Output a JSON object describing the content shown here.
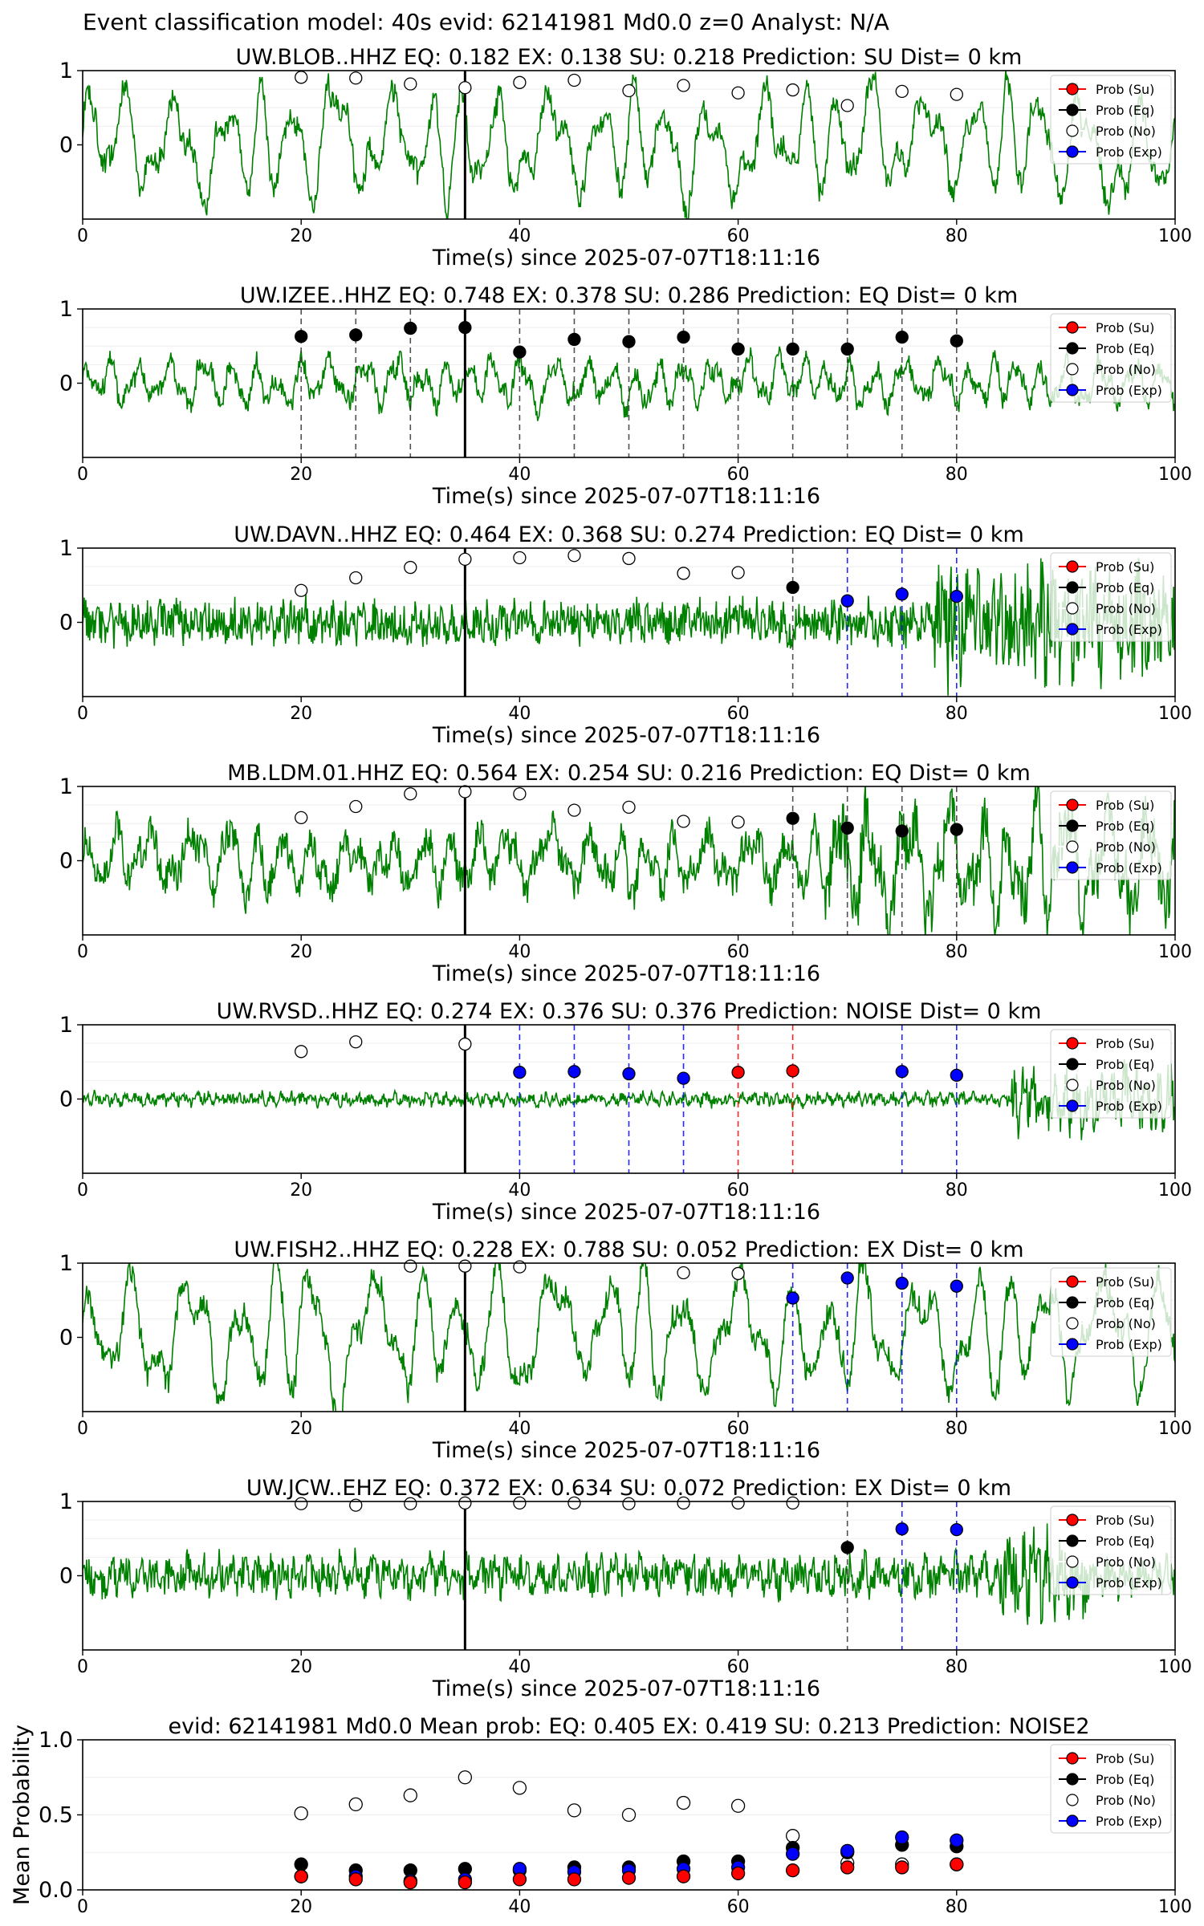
{
  "figure_title": "Event classification model: 40s evid: 62141981 Md0.0 z=0 Analyst: N/A",
  "legend_labels": [
    "Prob (Su)",
    "Prob (Eq)",
    "Prob (No)",
    "Prob (Exp)"
  ],
  "colors": {
    "waveform": "#008000",
    "su": "#ff0000",
    "eq": "#000000",
    "no": "#ffffff",
    "exp": "#0000ff",
    "event_line": "#000000"
  },
  "chart_data": [
    {
      "type": "line",
      "title": "UW.BLOB..HHZ   EQ: 0.182  EX: 0.138  SU: 0.218   Prediction: SU    Dist= 0 km",
      "xlabel": "Time(s) since 2025-07-07T18:11:16",
      "ylabel": "",
      "xlim": [
        0,
        100
      ],
      "ylim": [
        -1,
        1
      ],
      "xticks": [
        "0",
        "20",
        "40",
        "60",
        "80",
        "100"
      ],
      "yticks": [
        "0",
        "1"
      ],
      "event_time": 35,
      "waveform": {
        "amp": 0.55,
        "noise": 0.12,
        "period": 3.8,
        "seed": 11
      },
      "points": [
        {
          "x": 20,
          "y": 0.91,
          "cls": "no"
        },
        {
          "x": 25,
          "y": 0.9,
          "cls": "no"
        },
        {
          "x": 30,
          "y": 0.82,
          "cls": "no"
        },
        {
          "x": 35,
          "y": 0.77,
          "cls": "no"
        },
        {
          "x": 40,
          "y": 0.84,
          "cls": "no"
        },
        {
          "x": 45,
          "y": 0.87,
          "cls": "no"
        },
        {
          "x": 50,
          "y": 0.73,
          "cls": "no"
        },
        {
          "x": 55,
          "y": 0.8,
          "cls": "no"
        },
        {
          "x": 60,
          "y": 0.7,
          "cls": "no"
        },
        {
          "x": 65,
          "y": 0.74,
          "cls": "no"
        },
        {
          "x": 70,
          "y": 0.53,
          "cls": "no"
        },
        {
          "x": 75,
          "y": 0.72,
          "cls": "no"
        },
        {
          "x": 80,
          "y": 0.68,
          "cls": "no"
        }
      ],
      "vlines": []
    },
    {
      "type": "line",
      "title": "UW.IZEE..HHZ   EQ: 0.748  EX: 0.378  SU: 0.286   Prediction: EQ    Dist= 0 km",
      "xlabel": "Time(s) since 2025-07-07T18:11:16",
      "ylabel": "",
      "xlim": [
        0,
        100
      ],
      "ylim": [
        -1,
        1
      ],
      "xticks": [
        "0",
        "20",
        "40",
        "60",
        "80",
        "100"
      ],
      "yticks": [
        "0",
        "1"
      ],
      "event_time": 35,
      "waveform": {
        "amp": 0.22,
        "noise": 0.12,
        "period": 2.5,
        "seed": 23
      },
      "points": [
        {
          "x": 20,
          "y": 0.63,
          "cls": "eq"
        },
        {
          "x": 25,
          "y": 0.65,
          "cls": "eq"
        },
        {
          "x": 30,
          "y": 0.74,
          "cls": "eq"
        },
        {
          "x": 35,
          "y": 0.75,
          "cls": "eq"
        },
        {
          "x": 40,
          "y": 0.42,
          "cls": "eq"
        },
        {
          "x": 45,
          "y": 0.59,
          "cls": "eq"
        },
        {
          "x": 50,
          "y": 0.56,
          "cls": "eq"
        },
        {
          "x": 55,
          "y": 0.62,
          "cls": "eq"
        },
        {
          "x": 60,
          "y": 0.46,
          "cls": "eq"
        },
        {
          "x": 65,
          "y": 0.46,
          "cls": "eq"
        },
        {
          "x": 70,
          "y": 0.46,
          "cls": "eq"
        },
        {
          "x": 75,
          "y": 0.62,
          "cls": "eq"
        },
        {
          "x": 80,
          "y": 0.57,
          "cls": "eq"
        }
      ],
      "vlines": [
        {
          "x": 20,
          "cls": "eq"
        },
        {
          "x": 25,
          "cls": "eq"
        },
        {
          "x": 30,
          "cls": "eq"
        },
        {
          "x": 40,
          "cls": "eq"
        },
        {
          "x": 45,
          "cls": "eq"
        },
        {
          "x": 50,
          "cls": "eq"
        },
        {
          "x": 55,
          "cls": "eq"
        },
        {
          "x": 60,
          "cls": "eq"
        },
        {
          "x": 65,
          "cls": "eq"
        },
        {
          "x": 70,
          "cls": "eq"
        },
        {
          "x": 75,
          "cls": "eq"
        },
        {
          "x": 80,
          "cls": "eq"
        }
      ]
    },
    {
      "type": "line",
      "title": "UW.DAVN..HHZ   EQ: 0.464  EX: 0.368  SU: 0.274   Prediction: EQ    Dist= 0 km",
      "xlabel": "Time(s) since 2025-07-07T18:11:16",
      "ylabel": "",
      "xlim": [
        0,
        100
      ],
      "ylim": [
        -1,
        1
      ],
      "xticks": [
        "0",
        "20",
        "40",
        "60",
        "80",
        "100"
      ],
      "yticks": [
        "0",
        "1"
      ],
      "event_time": 35,
      "waveform": {
        "amp": 0.08,
        "noise": 0.26,
        "period": 1.2,
        "seed": 37,
        "burst": {
          "start": 78,
          "end": 100,
          "gain": 2.6
        }
      },
      "points": [
        {
          "x": 20,
          "y": 0.43,
          "cls": "no"
        },
        {
          "x": 25,
          "y": 0.6,
          "cls": "no"
        },
        {
          "x": 30,
          "y": 0.74,
          "cls": "no"
        },
        {
          "x": 35,
          "y": 0.85,
          "cls": "no"
        },
        {
          "x": 40,
          "y": 0.87,
          "cls": "no"
        },
        {
          "x": 45,
          "y": 0.9,
          "cls": "no"
        },
        {
          "x": 50,
          "y": 0.86,
          "cls": "no"
        },
        {
          "x": 55,
          "y": 0.66,
          "cls": "no"
        },
        {
          "x": 60,
          "y": 0.67,
          "cls": "no"
        },
        {
          "x": 65,
          "y": 0.47,
          "cls": "eq"
        },
        {
          "x": 70,
          "y": 0.29,
          "cls": "exp"
        },
        {
          "x": 75,
          "y": 0.38,
          "cls": "exp"
        },
        {
          "x": 80,
          "y": 0.35,
          "cls": "exp"
        }
      ],
      "vlines": [
        {
          "x": 65,
          "cls": "eq"
        },
        {
          "x": 70,
          "cls": "exp"
        },
        {
          "x": 75,
          "cls": "exp"
        },
        {
          "x": 80,
          "cls": "exp"
        }
      ]
    },
    {
      "type": "line",
      "title": "MB.LDM.01.HHZ   EQ: 0.564  EX: 0.254  SU: 0.216   Prediction: EQ    Dist= 0 km",
      "xlabel": "Time(s) since 2025-07-07T18:11:16",
      "ylabel": "",
      "xlim": [
        0,
        100
      ],
      "ylim": [
        -1,
        1
      ],
      "xticks": [
        "0",
        "20",
        "40",
        "60",
        "80",
        "100"
      ],
      "yticks": [
        "0",
        "1"
      ],
      "event_time": 35,
      "waveform": {
        "amp": 0.3,
        "noise": 0.22,
        "period": 3.0,
        "seed": 41,
        "burst": {
          "start": 68,
          "end": 100,
          "gain": 1.8
        }
      },
      "points": [
        {
          "x": 20,
          "y": 0.58,
          "cls": "no"
        },
        {
          "x": 25,
          "y": 0.73,
          "cls": "no"
        },
        {
          "x": 30,
          "y": 0.9,
          "cls": "no"
        },
        {
          "x": 35,
          "y": 0.93,
          "cls": "no"
        },
        {
          "x": 40,
          "y": 0.9,
          "cls": "no"
        },
        {
          "x": 45,
          "y": 0.68,
          "cls": "no"
        },
        {
          "x": 50,
          "y": 0.72,
          "cls": "no"
        },
        {
          "x": 55,
          "y": 0.53,
          "cls": "no"
        },
        {
          "x": 60,
          "y": 0.52,
          "cls": "no"
        },
        {
          "x": 65,
          "y": 0.57,
          "cls": "eq"
        },
        {
          "x": 70,
          "y": 0.44,
          "cls": "eq"
        },
        {
          "x": 75,
          "y": 0.4,
          "cls": "eq"
        },
        {
          "x": 80,
          "y": 0.42,
          "cls": "eq"
        }
      ],
      "vlines": [
        {
          "x": 65,
          "cls": "eq"
        },
        {
          "x": 70,
          "cls": "eq"
        },
        {
          "x": 75,
          "cls": "eq"
        },
        {
          "x": 80,
          "cls": "eq"
        }
      ]
    },
    {
      "type": "line",
      "title": "UW.RVSD..HHZ   EQ: 0.274  EX: 0.376  SU: 0.376   Prediction: NOISE    Dist= 0 km",
      "xlabel": "Time(s) since 2025-07-07T18:11:16",
      "ylabel": "",
      "xlim": [
        0,
        100
      ],
      "ylim": [
        -1,
        1
      ],
      "xticks": [
        "0",
        "20",
        "40",
        "60",
        "80",
        "100"
      ],
      "yticks": [
        "0",
        "1"
      ],
      "event_time": 35,
      "waveform": {
        "amp": 0.04,
        "noise": 0.07,
        "period": 1.0,
        "seed": 53,
        "burst": {
          "start": 85,
          "end": 100,
          "gain": 4.5
        }
      },
      "points": [
        {
          "x": 20,
          "y": 0.64,
          "cls": "no"
        },
        {
          "x": 25,
          "y": 0.77,
          "cls": "no"
        },
        {
          "x": 35,
          "y": 0.74,
          "cls": "no"
        },
        {
          "x": 40,
          "y": 0.36,
          "cls": "exp"
        },
        {
          "x": 45,
          "y": 0.37,
          "cls": "exp"
        },
        {
          "x": 50,
          "y": 0.34,
          "cls": "exp"
        },
        {
          "x": 55,
          "y": 0.28,
          "cls": "exp"
        },
        {
          "x": 60,
          "y": 0.36,
          "cls": "su"
        },
        {
          "x": 65,
          "y": 0.38,
          "cls": "su"
        },
        {
          "x": 75,
          "y": 0.37,
          "cls": "exp"
        },
        {
          "x": 80,
          "y": 0.32,
          "cls": "exp"
        }
      ],
      "vlines": [
        {
          "x": 40,
          "cls": "exp"
        },
        {
          "x": 45,
          "cls": "exp"
        },
        {
          "x": 50,
          "cls": "exp"
        },
        {
          "x": 55,
          "cls": "exp"
        },
        {
          "x": 60,
          "cls": "su"
        },
        {
          "x": 65,
          "cls": "su"
        },
        {
          "x": 75,
          "cls": "exp"
        },
        {
          "x": 80,
          "cls": "exp"
        }
      ]
    },
    {
      "type": "line",
      "title": "UW.FISH2..HHZ   EQ: 0.228  EX: 0.788  SU: 0.052   Prediction: EX    Dist= 0 km",
      "xlabel": "Time(s) since 2025-07-07T18:11:16",
      "ylabel": "",
      "xlim": [
        0,
        100
      ],
      "ylim": [
        -1,
        1
      ],
      "xticks": [
        "0",
        "20",
        "40",
        "60",
        "80",
        "100"
      ],
      "yticks": [
        "0",
        "1"
      ],
      "event_time": 35,
      "waveform": {
        "amp": 0.6,
        "noise": 0.14,
        "period": 4.2,
        "seed": 67
      },
      "points": [
        {
          "x": 30,
          "y": 0.96,
          "cls": "no"
        },
        {
          "x": 35,
          "y": 0.96,
          "cls": "no"
        },
        {
          "x": 40,
          "y": 0.95,
          "cls": "no"
        },
        {
          "x": 55,
          "y": 0.87,
          "cls": "no"
        },
        {
          "x": 60,
          "y": 0.86,
          "cls": "no"
        },
        {
          "x": 65,
          "y": 0.53,
          "cls": "exp"
        },
        {
          "x": 70,
          "y": 0.8,
          "cls": "exp"
        },
        {
          "x": 75,
          "y": 0.73,
          "cls": "exp"
        },
        {
          "x": 80,
          "y": 0.69,
          "cls": "exp"
        }
      ],
      "vlines": [
        {
          "x": 65,
          "cls": "exp"
        },
        {
          "x": 70,
          "cls": "exp"
        },
        {
          "x": 75,
          "cls": "exp"
        },
        {
          "x": 80,
          "cls": "exp"
        }
      ]
    },
    {
      "type": "line",
      "title": "UW.JCW..EHZ   EQ: 0.372  EX: 0.634  SU: 0.072   Prediction: EX    Dist= 0 km",
      "xlabel": "Time(s) since 2025-07-07T18:11:16",
      "ylabel": "",
      "xlim": [
        0,
        100
      ],
      "ylim": [
        -1,
        1
      ],
      "xticks": [
        "0",
        "20",
        "40",
        "60",
        "80",
        "100"
      ],
      "yticks": [
        "0",
        "1"
      ],
      "event_time": 35,
      "waveform": {
        "amp": 0.1,
        "noise": 0.22,
        "period": 1.3,
        "seed": 79,
        "burst": {
          "start": 84,
          "end": 92,
          "gain": 2.2
        }
      },
      "points": [
        {
          "x": 20,
          "y": 0.97,
          "cls": "no"
        },
        {
          "x": 25,
          "y": 0.95,
          "cls": "no"
        },
        {
          "x": 30,
          "y": 0.97,
          "cls": "no"
        },
        {
          "x": 35,
          "y": 0.98,
          "cls": "no"
        },
        {
          "x": 40,
          "y": 0.98,
          "cls": "no"
        },
        {
          "x": 45,
          "y": 0.98,
          "cls": "no"
        },
        {
          "x": 50,
          "y": 0.97,
          "cls": "no"
        },
        {
          "x": 55,
          "y": 0.98,
          "cls": "no"
        },
        {
          "x": 60,
          "y": 0.98,
          "cls": "no"
        },
        {
          "x": 65,
          "y": 0.98,
          "cls": "no"
        },
        {
          "x": 70,
          "y": 0.38,
          "cls": "eq"
        },
        {
          "x": 75,
          "y": 0.63,
          "cls": "exp"
        },
        {
          "x": 80,
          "y": 0.62,
          "cls": "exp"
        }
      ],
      "vlines": [
        {
          "x": 70,
          "cls": "eq"
        },
        {
          "x": 75,
          "cls": "exp"
        },
        {
          "x": 80,
          "cls": "exp"
        }
      ]
    },
    {
      "type": "scatter",
      "title": "evid: 62141981  Md0.0   Mean prob:   EQ: 0.405  EX: 0.419  SU: 0.213   Prediction: NOISE2",
      "xlabel": "",
      "ylabel": "Mean Probability",
      "xlim": [
        0,
        100
      ],
      "ylim": [
        0,
        1
      ],
      "xticks": [
        "0",
        "20",
        "40",
        "60",
        "80",
        "100"
      ],
      "yticks": [
        "0.0",
        "0.5",
        "1.0"
      ],
      "x": [
        20,
        25,
        30,
        35,
        40,
        45,
        50,
        55,
        60,
        65,
        70,
        75,
        80
      ],
      "series": [
        {
          "name": "Prob (No)",
          "cls": "no",
          "values": [
            0.51,
            0.57,
            0.63,
            0.75,
            0.68,
            0.53,
            0.5,
            0.58,
            0.56,
            0.36,
            0.18,
            0.17,
            0.17
          ]
        },
        {
          "name": "Prob (Eq)",
          "cls": "eq",
          "values": [
            0.17,
            0.13,
            0.13,
            0.14,
            0.13,
            0.15,
            0.15,
            0.19,
            0.19,
            0.28,
            0.25,
            0.3,
            0.29
          ]
        },
        {
          "name": "Prob (Exp)",
          "cls": "exp",
          "values": [
            0.09,
            0.09,
            0.06,
            0.07,
            0.14,
            0.12,
            0.13,
            0.14,
            0.15,
            0.24,
            0.26,
            0.35,
            0.33
          ]
        },
        {
          "name": "Prob (Su)",
          "cls": "su",
          "values": [
            0.09,
            0.07,
            0.05,
            0.05,
            0.07,
            0.07,
            0.08,
            0.09,
            0.11,
            0.13,
            0.15,
            0.15,
            0.17
          ]
        }
      ]
    }
  ]
}
